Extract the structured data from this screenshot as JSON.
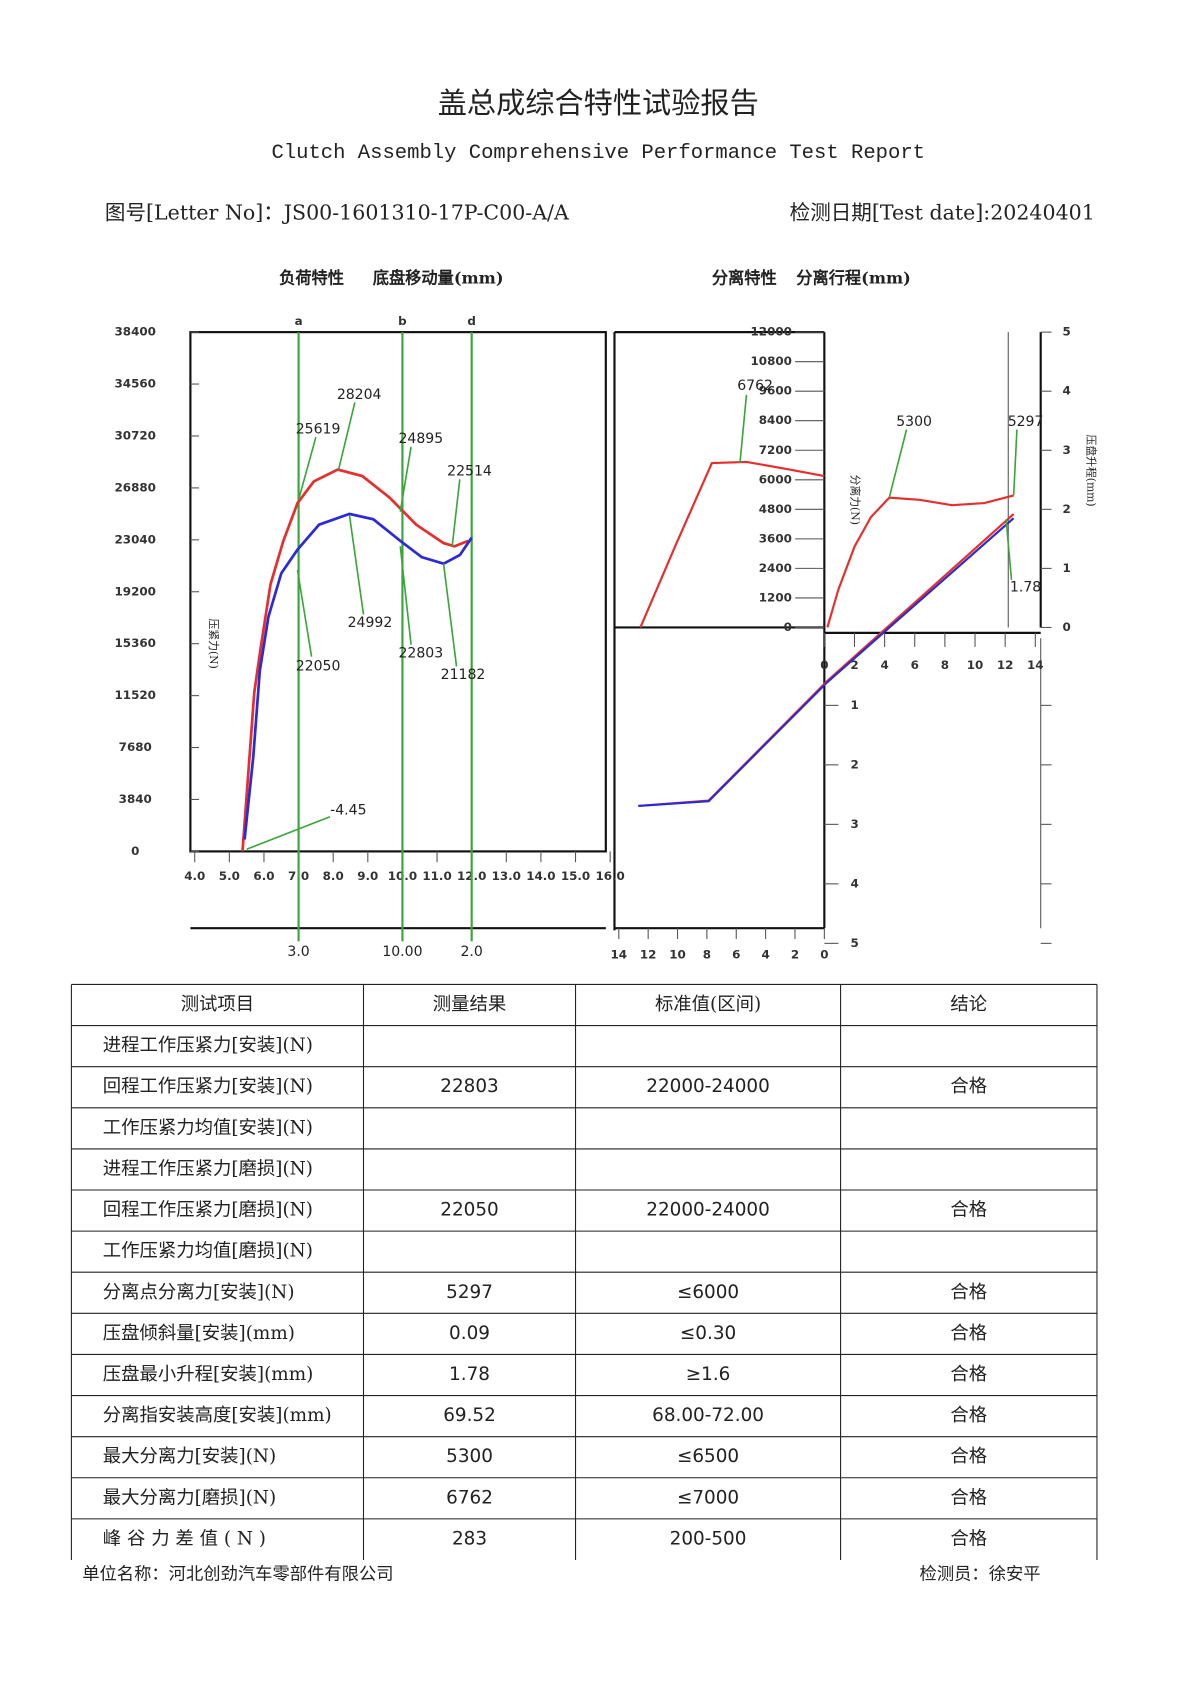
{
  "header": {
    "title": "盖总成综合特性试验报告",
    "subtitle": "Clutch Assembly Comprehensive Performance Test Report",
    "letter_no": "图号[Letter No]：JS00-1601310-17P-C00-A/A",
    "test_date": "检测日期[Test date]:20240401"
  },
  "chart_data": [
    {
      "type": "line",
      "title": "负荷特性",
      "x_label": "底盘移动量(mm)",
      "y_label": "压紧力(N)",
      "xlim": [
        4,
        16
      ],
      "xticks": [
        {
          "value": 4,
          "label": "4.0"
        },
        {
          "value": 5,
          "label": "5.0"
        },
        {
          "value": 6,
          "label": "6.0"
        },
        {
          "value": 7,
          "label": "7.0"
        },
        {
          "value": 8,
          "label": "8.0"
        },
        {
          "value": 9,
          "label": "9.0"
        },
        {
          "value": 10,
          "label": "10.0"
        },
        {
          "value": 11,
          "label": "11.0"
        },
        {
          "value": 12,
          "label": "12.0"
        },
        {
          "value": 13,
          "label": "13.0"
        },
        {
          "value": 14,
          "label": "14.0"
        },
        {
          "value": 15,
          "label": "15.0"
        },
        {
          "value": 16,
          "label": "16.0"
        }
      ],
      "ylim": [
        0,
        38400
      ],
      "yticks": [
        0,
        3840,
        7680,
        11520,
        15360,
        19200,
        23040,
        26880,
        30720,
        34560,
        38400
      ],
      "markers": [
        {
          "name": "a",
          "x": 7,
          "reading": "3.0"
        },
        {
          "name": "b",
          "x": 10,
          "reading": "10.00"
        },
        {
          "name": "d",
          "x": 12,
          "reading": "2.0"
        }
      ],
      "marker_color": "#3aa53a",
      "series": [
        {
          "color": "#e62e2e",
          "x": [
            5.38,
            5.72,
            5.9,
            6.19,
            6.56,
            6.97,
            7.44,
            8.13,
            8.84,
            9.63,
            10.4,
            11.19,
            11.5,
            11.9
          ],
          "values": [
            0,
            11760,
            14960,
            19760,
            22960,
            25760,
            27360,
            28240,
            27760,
            26160,
            24160,
            22800,
            22560,
            22960
          ]
        },
        {
          "color": "#2a2ad8",
          "x": [
            5.44,
            5.69,
            5.88,
            6.13,
            6.5,
            6.97,
            7.59,
            8.47,
            9.16,
            9.94,
            10.56,
            11.19,
            11.66,
            12.0
          ],
          "values": [
            880,
            6960,
            13360,
            17360,
            20560,
            22320,
            24160,
            24960,
            24560,
            22960,
            21760,
            21280,
            21920,
            23200
          ]
        }
      ],
      "annotations": [
        28204,
        25619,
        24895,
        22514,
        22050,
        24992,
        22803,
        21182,
        -4.45
      ]
    },
    {
      "type": "line",
      "title": "分离特性",
      "x_label": "分离行程(mm)",
      "y_label": "分离力(N)",
      "y2_label": "压盘升程(mm)",
      "xlim": [
        0,
        14
      ],
      "xticks": [
        0,
        2,
        4,
        6,
        8,
        10,
        12,
        14
      ],
      "x_rev_ticks": [
        14,
        12,
        10,
        8,
        6,
        4,
        2,
        0
      ],
      "ylim": [
        0,
        12000
      ],
      "yticks": [
        0,
        1200,
        2400,
        3600,
        4800,
        6000,
        7200,
        8400,
        9600,
        10800,
        12000
      ],
      "y2lim": [
        0,
        5
      ],
      "y2ticks": [
        0,
        1,
        2,
        3,
        4,
        5
      ],
      "y2_down_ticks": [
        1,
        2,
        3,
        4,
        5
      ],
      "series": [
        {
          "color": "#e62e2e",
          "axis": "y",
          "x_axis": "x",
          "x": [
            0.2,
            0.93,
            2.01,
            3.09,
            4.31,
            6.32,
            8.47,
            10.62,
            12.56
          ],
          "values": [
            0,
            1538,
            3297,
            4484,
            5275,
            5187,
            4967,
            5055,
            5363
          ]
        },
        {
          "color": "#e62e2e",
          "axis": "y",
          "x_axis": "x_rev",
          "x": [
            12.53,
            10.1,
            7.66,
            5.3,
            2.36,
            0
          ],
          "values": [
            0,
            3385,
            6681,
            6725,
            6418,
            6154
          ]
        },
        {
          "color": "#e62e2e",
          "axis": "y2",
          "x_axis": "x",
          "x": [
            0,
            12.56
          ],
          "values": [
            -0.95,
            1.92
          ]
        },
        {
          "color": "#2a2ad8",
          "axis": "y2",
          "x_axis": "x",
          "x": [
            0,
            12.56
          ],
          "values": [
            -0.97,
            1.85
          ]
        },
        {
          "color": "#e62e2e",
          "axis": "y2_down",
          "x_axis": "x_rev",
          "x": [
            12.67,
            7.88,
            0
          ],
          "values": [
            2.69,
            2.6,
            0.64
          ]
        },
        {
          "color": "#2a2ad8",
          "axis": "y2_down",
          "x_axis": "x_rev",
          "x": [
            12.67,
            7.88,
            0
          ],
          "values": [
            2.69,
            2.61,
            0.66
          ]
        }
      ],
      "annotations": [
        6762,
        5300,
        5297,
        1.78
      ]
    }
  ],
  "table": {
    "header": [
      "测试项目",
      "测量结果",
      "标准值(区间)",
      "结论"
    ],
    "rows": [
      [
        "进程工作压紧力[安装](N)",
        null,
        null,
        null
      ],
      [
        "回程工作压紧力[安装](N)",
        "22803",
        "22000-24000",
        "合格"
      ],
      [
        "工作压紧力均值[安装](N)",
        null,
        null,
        null
      ],
      [
        "进程工作压紧力[磨损](N)",
        null,
        null,
        null
      ],
      [
        "回程工作压紧力[磨损](N)",
        "22050",
        "22000-24000",
        "合格"
      ],
      [
        "工作压紧力均值[磨损](N)",
        null,
        null,
        null
      ],
      [
        "分离点分离力[安装](N)",
        "5297",
        "≤6000",
        "合格"
      ],
      [
        "压盘倾斜量[安装](mm)",
        "0.09",
        "≤0.30",
        "合格"
      ],
      [
        "压盘最小升程[安装](mm)",
        "1.78",
        "≥1.6",
        "合格"
      ],
      [
        "分离指安装高度[安装](mm)",
        "69.52",
        "68.00-72.00",
        "合格"
      ],
      [
        "最大分离力[安装](N)",
        "5300",
        "≤6500",
        "合格"
      ],
      [
        "最大分离力[磨损](N)",
        "6762",
        "≤7000",
        "合格"
      ],
      [
        "峰 谷 力 差 值 ( N )",
        "283",
        "200-500",
        "合格"
      ]
    ]
  },
  "footer": {
    "company": "单位名称：河北创劲汽车零部件有限公司",
    "inspector": "检测员：徐安平"
  }
}
